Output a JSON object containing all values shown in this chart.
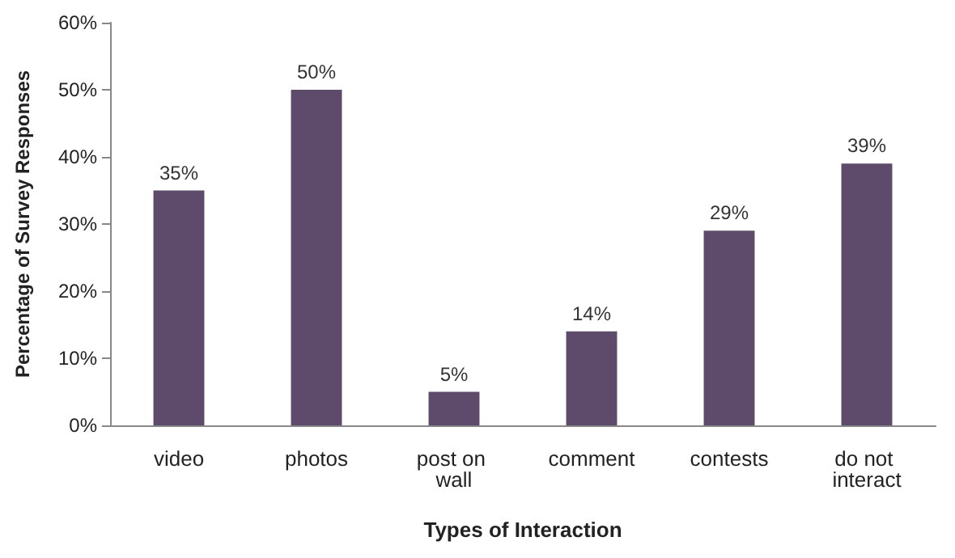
{
  "chart_data": {
    "type": "bar",
    "xlabel": "Types of Interaction",
    "ylabel": "Percentage of Survey Responses",
    "categories": [
      "video",
      "photos",
      "post on wall",
      "comment",
      "contests",
      "do not interact"
    ],
    "values": [
      35,
      50,
      5,
      14,
      29,
      39
    ],
    "value_labels": [
      "35%",
      "50%",
      "5%",
      "14%",
      "29%",
      "39%"
    ],
    "color": "#5e4b6c",
    "ylim": [
      0,
      60
    ],
    "yticks": [
      {
        "value": 0,
        "label": "0%"
      },
      {
        "value": 10,
        "label": "10%"
      },
      {
        "value": 20,
        "label": "20%"
      },
      {
        "value": 30,
        "label": "30%"
      },
      {
        "value": 40,
        "label": "40%"
      },
      {
        "value": 50,
        "label": "50%"
      },
      {
        "value": 60,
        "label": "60%"
      }
    ],
    "grid": false
  }
}
